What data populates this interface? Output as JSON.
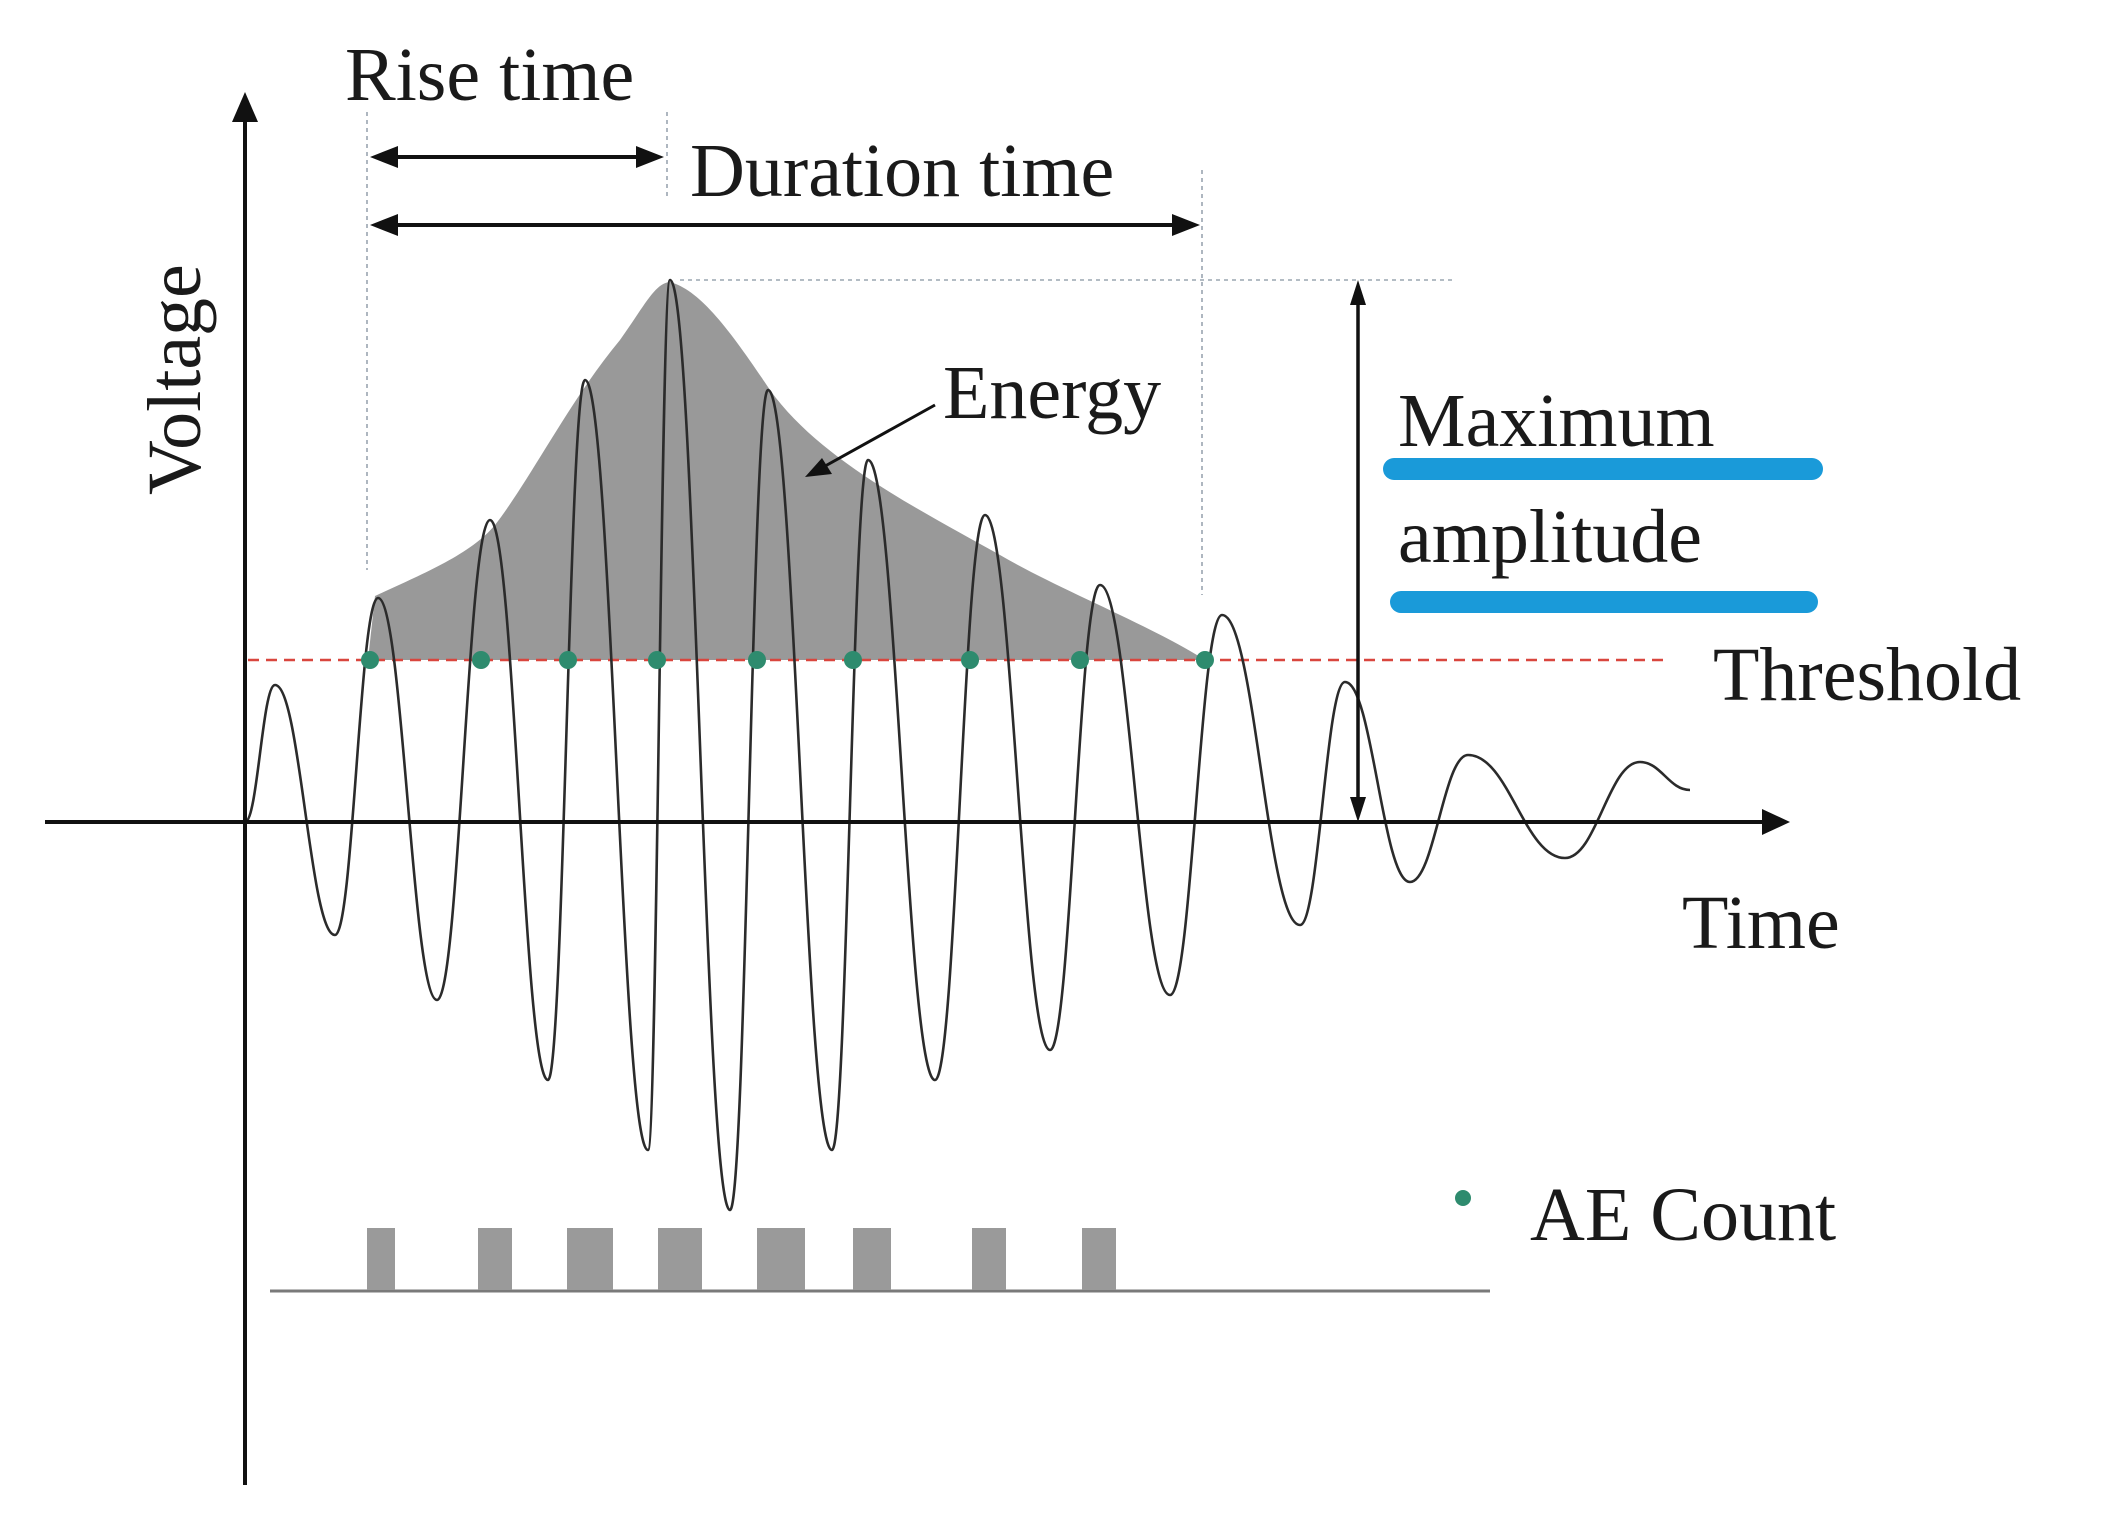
{
  "labels": {
    "rise_time": "Rise time",
    "duration_time": "Duration time",
    "energy": "Energy",
    "max_amplitude_line1": "Maximum",
    "max_amplitude_line2": "amplitude",
    "threshold": "Threshold",
    "y_axis": "Voltage",
    "x_axis": "Time",
    "legend_ae_count": "AE Count"
  },
  "colors": {
    "axis": "#111111",
    "waveform": "#2b2b2b",
    "energy_fill": "#999999",
    "threshold_line": "#d9463e",
    "ae_count_marker": "#2e8b6e",
    "count_pulse": "#9a9a9a",
    "highlight_bar": "#1a9ad9",
    "guide_line": "#9aa5b0"
  },
  "ae_count": 9,
  "count_pulses": 8
}
